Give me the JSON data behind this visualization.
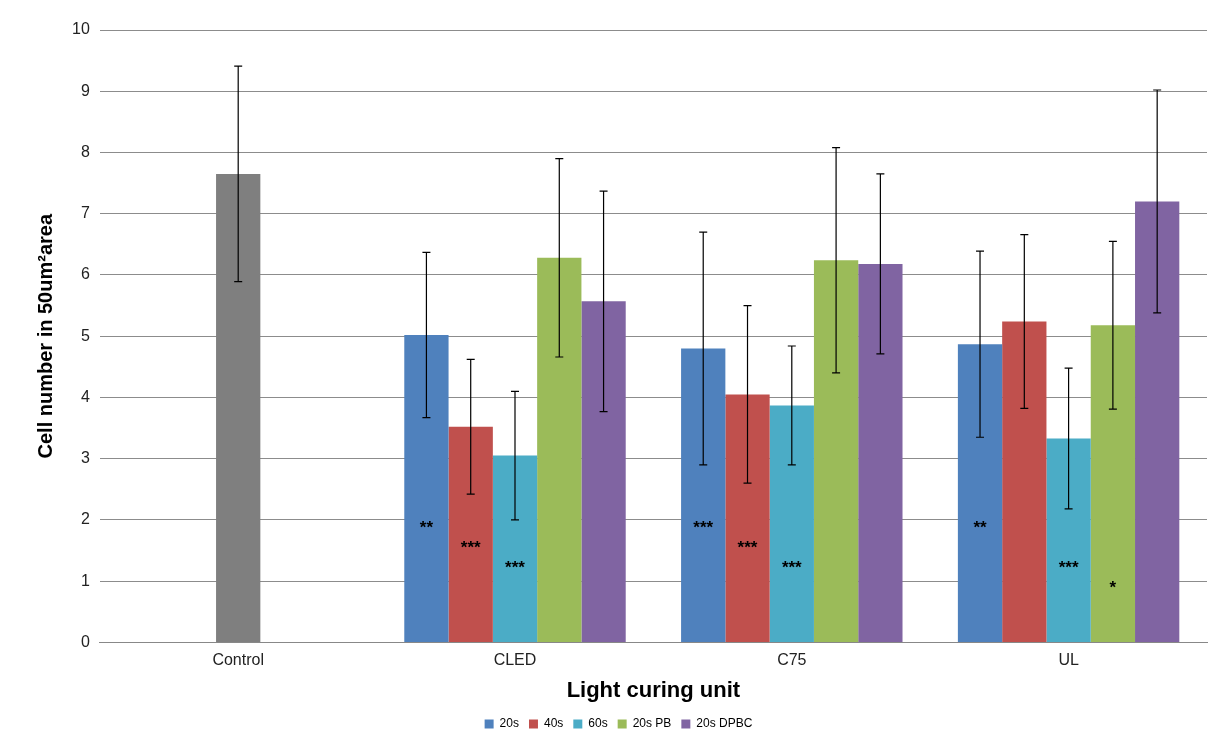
{
  "chart_data": {
    "type": "bar",
    "xlabel": "Light curing unit",
    "ylabel": "Cell number in 50um²area",
    "categories": [
      "Control",
      "CLED",
      "C75",
      "UL"
    ],
    "series": [
      {
        "name": "20s",
        "color": "#4f81bd",
        "values": [
          null,
          5.02,
          4.8,
          4.87
        ],
        "errors": [
          null,
          1.35,
          1.9,
          1.52
        ],
        "value_labels": [
          null,
          "**",
          "***",
          "**"
        ]
      },
      {
        "name": "40s",
        "color": "#c0504d",
        "values": [
          null,
          3.52,
          4.05,
          5.24
        ],
        "errors": [
          null,
          1.1,
          1.45,
          1.42
        ],
        "value_labels": [
          null,
          "***",
          "***",
          null
        ]
      },
      {
        "name": "60s",
        "color": "#4bacc6",
        "colors": [
          "#7f7f7f",
          "#4bacc6",
          "#4bacc6",
          "#4bacc6"
        ],
        "values": [
          7.65,
          3.05,
          3.87,
          3.33
        ],
        "errors": [
          1.76,
          1.05,
          0.97,
          1.15
        ],
        "value_labels": [
          null,
          "***",
          "***",
          "***"
        ]
      },
      {
        "name": "20s PB",
        "color": "#9bbb59",
        "values": [
          null,
          6.28,
          6.24,
          5.18
        ],
        "errors": [
          null,
          1.62,
          1.84,
          1.37
        ],
        "value_labels": [
          null,
          null,
          null,
          "*"
        ]
      },
      {
        "name": "20s DPBC",
        "color": "#8064a2",
        "values": [
          null,
          5.57,
          6.18,
          7.2
        ],
        "errors": [
          null,
          1.8,
          1.47,
          1.82
        ]
      }
    ],
    "ylim": [
      0,
      10
    ],
    "yticks": [
      0,
      1,
      2,
      3,
      4,
      5,
      6,
      7,
      8,
      9,
      10
    ],
    "grid": "y",
    "legend": "bottom"
  }
}
